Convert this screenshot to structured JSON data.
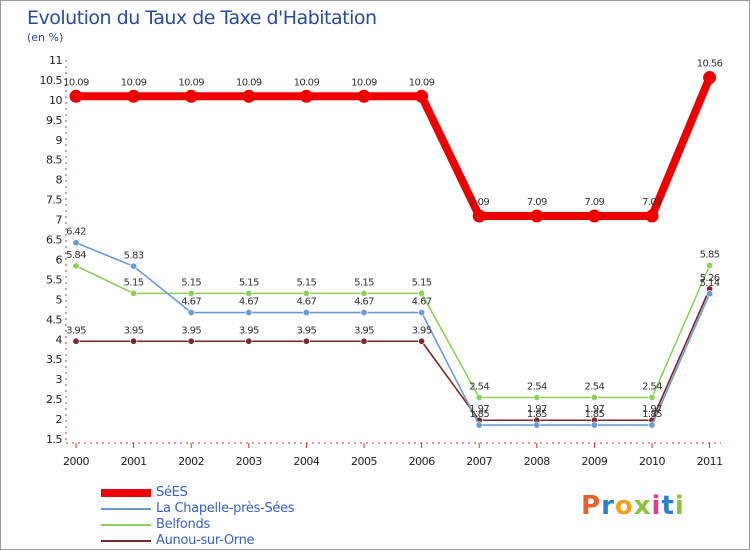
{
  "title": "Evolution du Taux de Taxe d'Habitation",
  "subtitle": "(en %)",
  "logo": {
    "text": "Proxiti",
    "letter_colors": [
      "#e8622a",
      "#2a7fd4",
      "#f0a020",
      "#8ac43a",
      "#e83a8a",
      "#2a7fd4",
      "#8ac43a"
    ]
  },
  "chart_data": {
    "type": "line",
    "title": "Evolution du Taux de Taxe d'Habitation",
    "ylabel": "(en %)",
    "xlabel": "",
    "x": [
      "2000",
      "2001",
      "2002",
      "2003",
      "2004",
      "2005",
      "2006",
      "2007",
      "2008",
      "2009",
      "2010",
      "2011"
    ],
    "ylim": [
      1.5,
      11
    ],
    "yticks": [
      "1.5",
      "2",
      "2.5",
      "3",
      "3.5",
      "4",
      "4.5",
      "5",
      "5.5",
      "6",
      "6.5",
      "7",
      "7.5",
      "8",
      "8.5",
      "9",
      "9.5",
      "10",
      "10.5",
      "11"
    ],
    "grid": false,
    "legend_position": "bottom-left",
    "series": [
      {
        "name": "SéES",
        "color": "#ee0000",
        "values": [
          10.09,
          10.09,
          10.09,
          10.09,
          10.09,
          10.09,
          10.09,
          7.09,
          7.09,
          7.09,
          7.09,
          10.56
        ],
        "labels": [
          "10.09",
          "10.09",
          "10.09",
          "10.09",
          "10.09",
          "10.09",
          "10.09",
          "7.09",
          "7.09",
          "7.09",
          "7.09",
          "10.56"
        ]
      },
      {
        "name": "La Chapelle-près-Sées",
        "color": "#6a9cd4",
        "values": [
          6.42,
          5.83,
          4.67,
          4.67,
          4.67,
          4.67,
          4.67,
          1.85,
          1.85,
          1.85,
          1.85,
          5.14
        ],
        "labels": [
          "6.42",
          "5.83",
          "4.67",
          "4.67",
          "4.67",
          "4.67",
          "4.67",
          "1.85",
          "1.85",
          "1.85",
          "1.85",
          "5.14"
        ]
      },
      {
        "name": "Belfonds",
        "color": "#8ed05a",
        "values": [
          5.84,
          5.15,
          5.15,
          5.15,
          5.15,
          5.15,
          5.15,
          2.54,
          2.54,
          2.54,
          2.54,
          5.85
        ],
        "labels": [
          "5.84",
          "5.15",
          "5.15",
          "5.15",
          "5.15",
          "5.15",
          "5.15",
          "2.54",
          "2.54",
          "2.54",
          "2.54",
          "5.85"
        ]
      },
      {
        "name": "Aunou-sur-Orne",
        "color": "#7a2a2a",
        "values": [
          3.95,
          3.95,
          3.95,
          3.95,
          3.95,
          3.95,
          3.95,
          1.97,
          1.97,
          1.97,
          1.97,
          5.26
        ],
        "labels": [
          "3.95",
          "3.95",
          "3.95",
          "3.95",
          "3.95",
          "3.95",
          "3.95",
          "1.97",
          "1.97",
          "1.97",
          "1.97",
          "5.26"
        ]
      }
    ]
  }
}
